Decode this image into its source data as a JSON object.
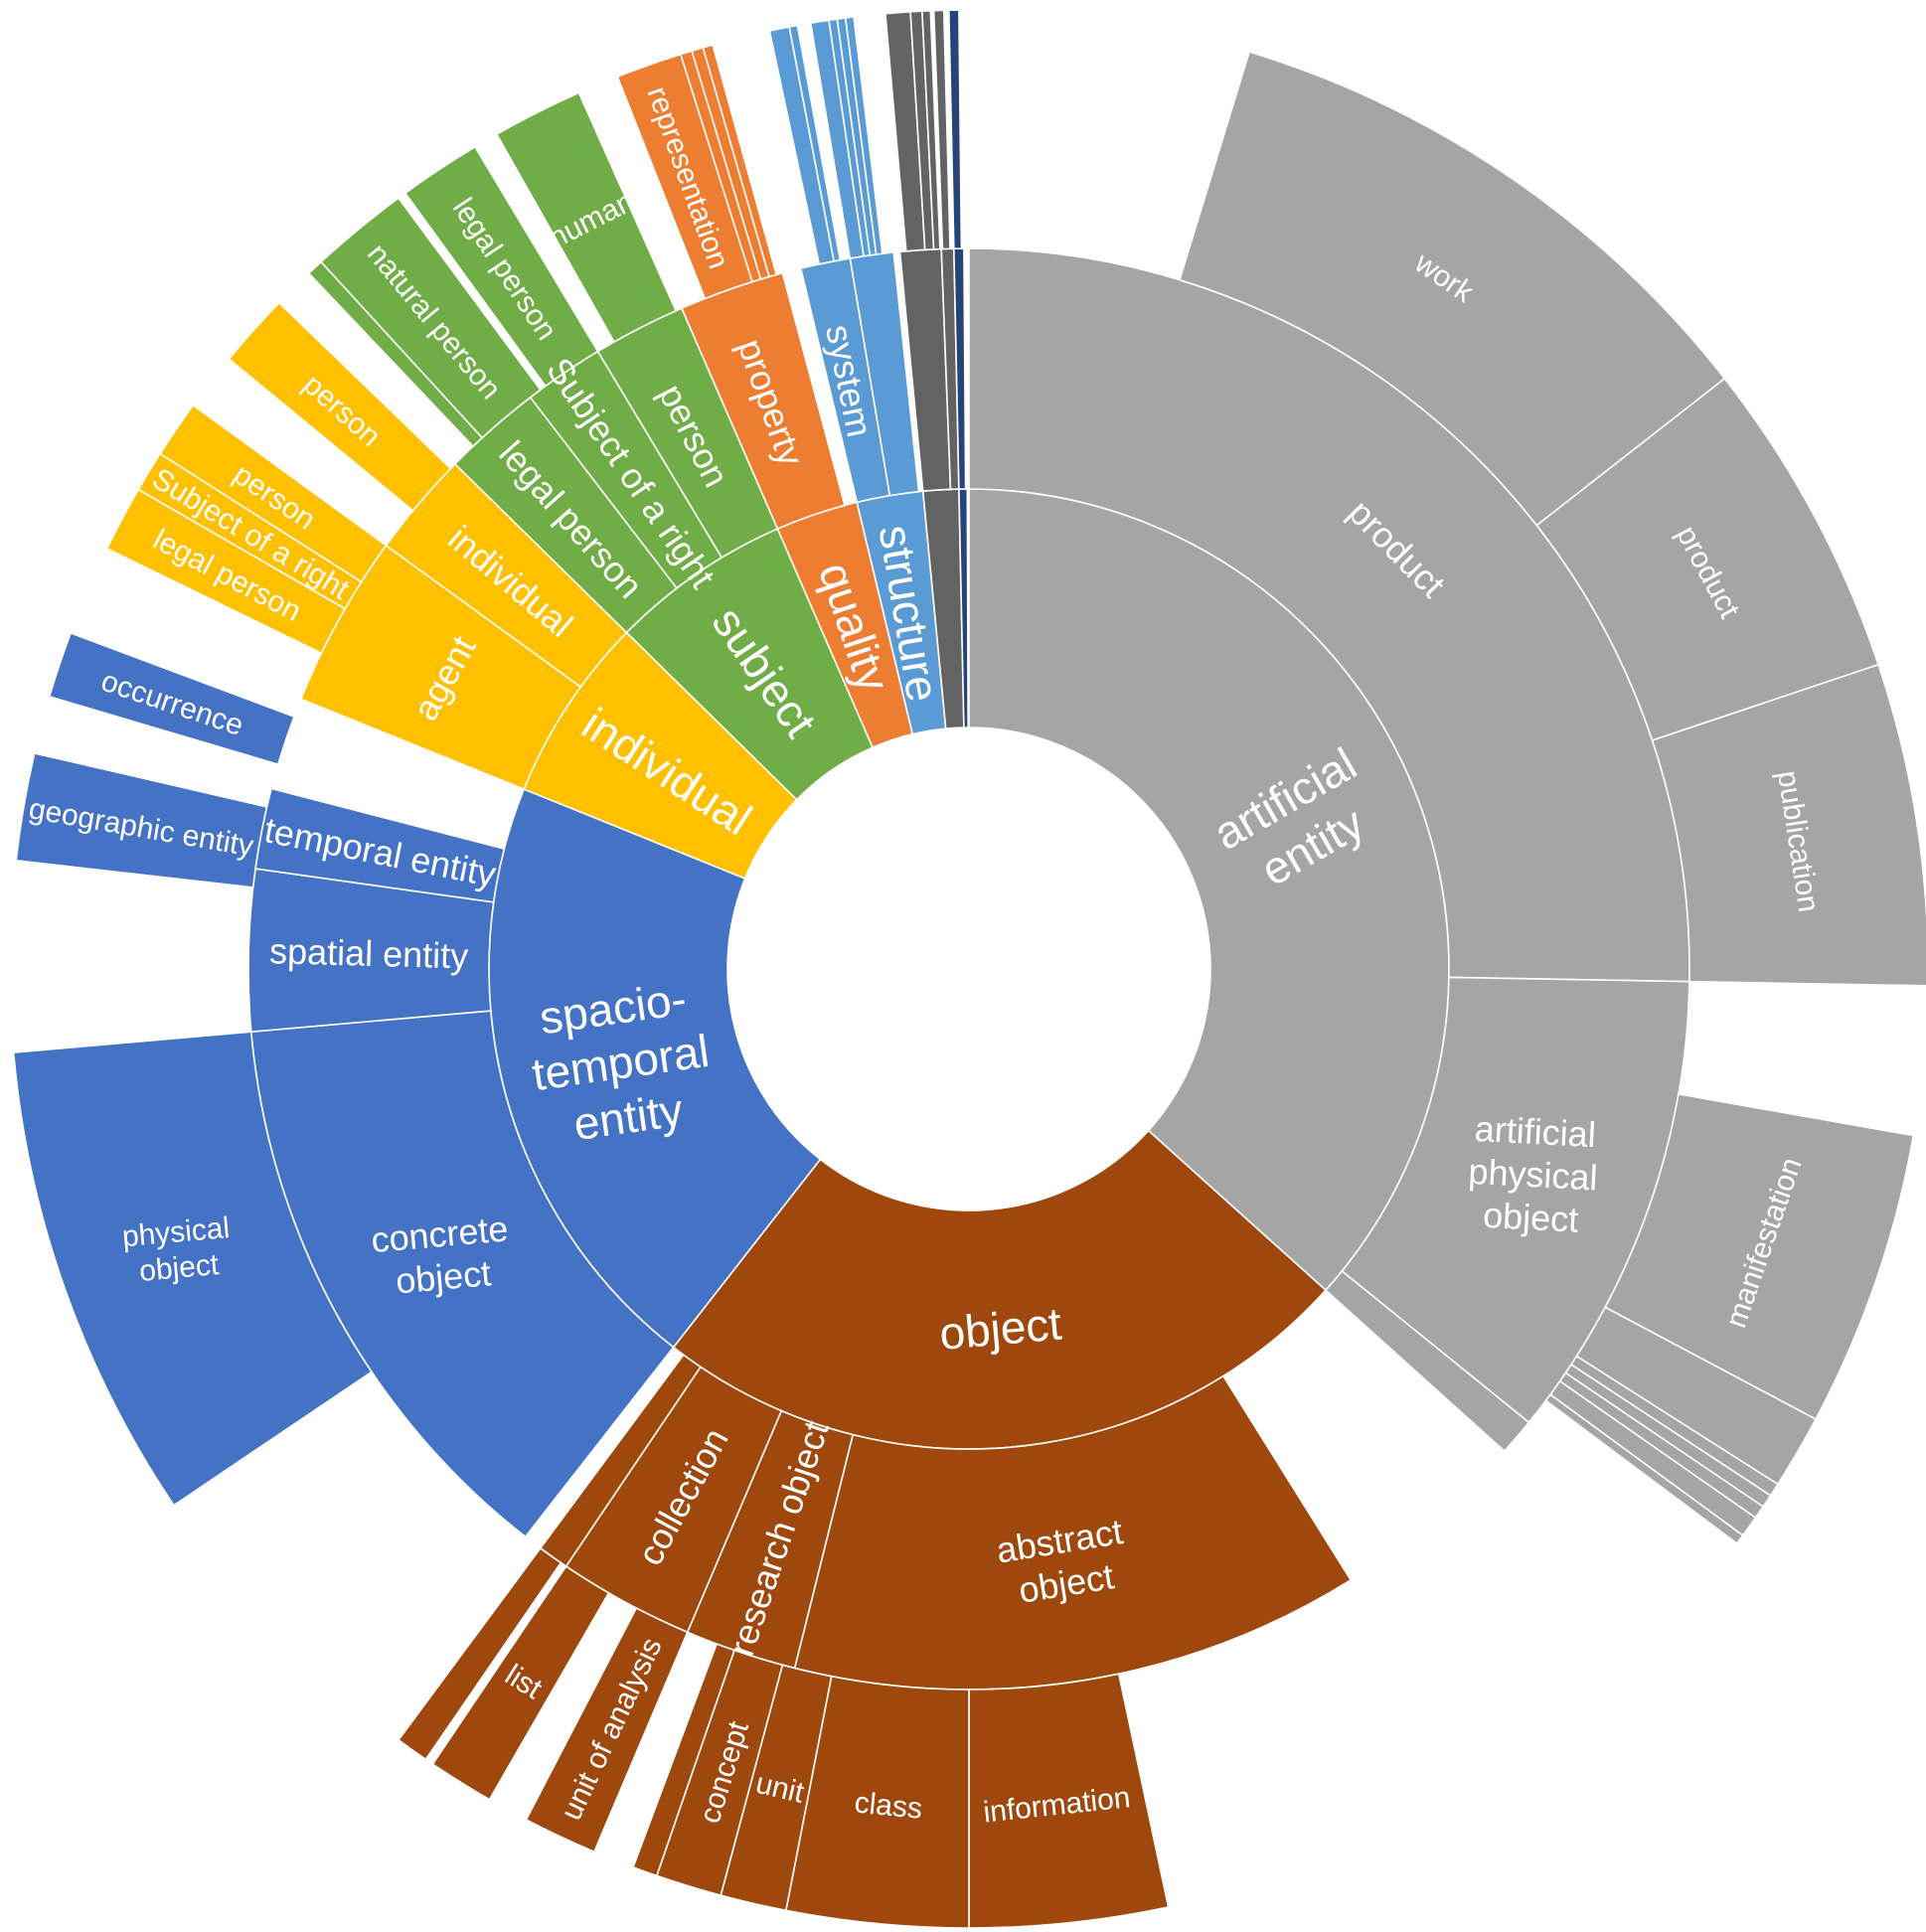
{
  "chart_data": {
    "type": "sunburst",
    "title": "",
    "colors": {
      "artificial": "#A5A5A5",
      "object": "#9E480E",
      "spatio": "#4472C4",
      "individual": "#FFC000",
      "subject": "#70AD47",
      "quality": "#ED7D31",
      "structure": "#5B9BD5",
      "minorDark": "#636363",
      "minorBlue": "#264478"
    },
    "segments": [
      {
        "name": "artificial entity",
        "level": 1,
        "start": 0.0,
        "end": 132.0,
        "color": "artificial"
      },
      {
        "name": "product",
        "level": 2,
        "start": 0.0,
        "end": 91.0,
        "color": "artificial"
      },
      {
        "name": "work",
        "level": 3,
        "start": 17.0,
        "end": 52.0,
        "color": "artificial"
      },
      {
        "name": "product",
        "level": 3,
        "start": 52.0,
        "end": 71.5,
        "color": "artificial"
      },
      {
        "name": "publication",
        "level": 3,
        "start": 71.5,
        "end": 91.0,
        "color": "artificial"
      },
      {
        "name": "artificial physical object",
        "level": 2,
        "start": 91.0,
        "end": 129.0,
        "color": "artificial"
      },
      {
        "name": "",
        "level": 2,
        "start": 129.0,
        "end": 132.0,
        "color": "artificial"
      },
      {
        "name": "manifestation",
        "level": 3,
        "start": 100.0,
        "end": 118.0,
        "color": "artificial"
      },
      {
        "name": "",
        "level": 3,
        "start": 118.0,
        "end": 122.5,
        "color": "artificial"
      },
      {
        "name": "",
        "level": 3,
        "start": 122.5,
        "end": 123.3,
        "color": "artificial"
      },
      {
        "name": "",
        "level": 3,
        "start": 123.3,
        "end": 124.1,
        "color": "artificial"
      },
      {
        "name": "",
        "level": 3,
        "start": 124.1,
        "end": 124.9,
        "color": "artificial"
      },
      {
        "name": "",
        "level": 3,
        "start": 124.9,
        "end": 126.2,
        "color": "artificial"
      },
      {
        "name": "",
        "level": 3,
        "start": 126.2,
        "end": 126.8,
        "color": "artificial"
      },
      {
        "name": "object",
        "level": 1,
        "start": 132.0,
        "end": 218.0,
        "color": "object"
      },
      {
        "name": "abstract object",
        "level": 2,
        "start": 148.0,
        "end": 194.0,
        "color": "object"
      },
      {
        "name": "research object",
        "level": 2,
        "start": 194.0,
        "end": 203.0,
        "color": "object"
      },
      {
        "name": "collection",
        "level": 2,
        "start": 203.0,
        "end": 214.0,
        "color": "object"
      },
      {
        "name": "",
        "level": 2,
        "start": 214.0,
        "end": 216.5,
        "color": "object"
      },
      {
        "name": "information",
        "level": 3,
        "start": 168.0,
        "end": 180.0,
        "color": "object"
      },
      {
        "name": "class",
        "level": 3,
        "start": 180.0,
        "end": 191.0,
        "color": "object"
      },
      {
        "name": "unit",
        "level": 3,
        "start": 191.0,
        "end": 195.0,
        "color": "object"
      },
      {
        "name": "concept",
        "level": 3,
        "start": 195.0,
        "end": 199.0,
        "color": "object"
      },
      {
        "name": "",
        "level": 3,
        "start": 199.0,
        "end": 200.5,
        "color": "object"
      },
      {
        "name": "unit of analysis",
        "level": 3,
        "start": 203.0,
        "end": 207.5,
        "color": "object"
      },
      {
        "name": "list",
        "level": 3,
        "start": 210.0,
        "end": 214.0,
        "color": "object"
      },
      {
        "name": "",
        "level": 3,
        "start": 214.5,
        "end": 216.5,
        "color": "object"
      },
      {
        "name": "spacio-temporal entity",
        "level": 1,
        "start": 218.0,
        "end": 292.0,
        "color": "spatio"
      },
      {
        "name": "concrete object",
        "level": 2,
        "start": 218.0,
        "end": 265.0,
        "color": "spatio"
      },
      {
        "name": "physical object",
        "level": 3,
        "start": 236.0,
        "end": 265.0,
        "color": "spatio"
      },
      {
        "name": "spatial entity",
        "level": 2,
        "start": 265.0,
        "end": 278.0,
        "color": "spatio"
      },
      {
        "name": "geographic entity",
        "level": 3,
        "start": 276.5,
        "end": 283.0,
        "color": "spatio"
      },
      {
        "name": "temporal entity",
        "level": 2,
        "start": 278.0,
        "end": 284.5,
        "color": "spatio"
      },
      {
        "name": "occurrence",
        "level": 3,
        "start": 286.5,
        "end": 290.5,
        "color": "spatio"
      },
      {
        "name": "individual",
        "level": 1,
        "start": 292.0,
        "end": 314.5,
        "color": "individual"
      },
      {
        "name": "agent",
        "level": 2,
        "start": 292.0,
        "end": 306.0,
        "color": "individual"
      },
      {
        "name": "individual",
        "level": 2,
        "start": 306.0,
        "end": 314.5,
        "color": "individual"
      },
      {
        "name": "legal person",
        "level": 3,
        "start": 296.0,
        "end": 300.0,
        "color": "individual"
      },
      {
        "name": "Subject of a right",
        "level": 3,
        "start": 300.0,
        "end": 302.5,
        "color": "individual"
      },
      {
        "name": "person",
        "level": 3,
        "start": 302.5,
        "end": 306.0,
        "color": "individual"
      },
      {
        "name": "person",
        "level": 3,
        "start": 309.5,
        "end": 314.0,
        "color": "individual"
      },
      {
        "name": "subject",
        "level": 1,
        "start": 314.5,
        "end": 336.5,
        "color": "subject"
      },
      {
        "name": "legal person",
        "level": 2,
        "start": 314.5,
        "end": 322.5,
        "color": "subject"
      },
      {
        "name": "Subject of a right",
        "level": 2,
        "start": 322.5,
        "end": 329.0,
        "color": "subject"
      },
      {
        "name": "person",
        "level": 2,
        "start": 329.0,
        "end": 336.5,
        "color": "subject"
      },
      {
        "name": "",
        "level": 3,
        "start": 316.5,
        "end": 317.5,
        "color": "subject"
      },
      {
        "name": "natural person",
        "level": 3,
        "start": 317.5,
        "end": 323.5,
        "color": "subject"
      },
      {
        "name": "legal person",
        "level": 3,
        "start": 324.0,
        "end": 329.0,
        "color": "subject"
      },
      {
        "name": "human",
        "level": 3,
        "start": 330.5,
        "end": 336.0,
        "color": "subject"
      },
      {
        "name": "quality",
        "level": 1,
        "start": 336.5,
        "end": 346.5,
        "color": "quality"
      },
      {
        "name": "property",
        "level": 2,
        "start": 336.5,
        "end": 345.0,
        "color": "quality"
      },
      {
        "name": "representation",
        "level": 3,
        "start": 338.5,
        "end": 342.5,
        "color": "quality"
      },
      {
        "name": "",
        "level": 3,
        "start": 342.5,
        "end": 343.2,
        "color": "quality"
      },
      {
        "name": "",
        "level": 3,
        "start": 343.2,
        "end": 343.9,
        "color": "quality"
      },
      {
        "name": "",
        "level": 3,
        "start": 343.9,
        "end": 344.5,
        "color": "quality"
      },
      {
        "name": "structure",
        "level": 1,
        "start": 346.5,
        "end": 354.5,
        "color": "structure"
      },
      {
        "name": "system",
        "level": 2,
        "start": 346.5,
        "end": 350.5,
        "color": "structure"
      },
      {
        "name": "",
        "level": 2,
        "start": 350.5,
        "end": 354.0,
        "color": "structure"
      },
      {
        "name": "",
        "level": 3,
        "start": 348.0,
        "end": 349.2,
        "color": "structure"
      },
      {
        "name": "",
        "level": 3,
        "start": 349.2,
        "end": 349.7,
        "color": "structure"
      },
      {
        "name": "",
        "level": 3,
        "start": 350.5,
        "end": 351.6,
        "color": "structure"
      },
      {
        "name": "",
        "level": 3,
        "start": 351.6,
        "end": 352.1,
        "color": "structure"
      },
      {
        "name": "",
        "level": 3,
        "start": 352.1,
        "end": 352.6,
        "color": "structure"
      },
      {
        "name": "",
        "level": 3,
        "start": 352.6,
        "end": 353.1,
        "color": "structure"
      },
      {
        "name": "",
        "level": 1,
        "start": 354.5,
        "end": 358.8,
        "color": "minorDark"
      },
      {
        "name": "",
        "level": 2,
        "start": 354.5,
        "end": 357.8,
        "color": "minorDark"
      },
      {
        "name": "",
        "level": 2,
        "start": 357.8,
        "end": 358.8,
        "color": "minorDark"
      },
      {
        "name": "",
        "level": 3,
        "start": 355.0,
        "end": 356.5,
        "color": "minorDark"
      },
      {
        "name": "",
        "level": 3,
        "start": 356.5,
        "end": 357.2,
        "color": "minorDark"
      },
      {
        "name": "",
        "level": 3,
        "start": 357.2,
        "end": 357.7,
        "color": "minorDark"
      },
      {
        "name": "",
        "level": 3,
        "start": 357.9,
        "end": 358.5,
        "color": "minorDark"
      },
      {
        "name": "",
        "level": 1,
        "start": 358.8,
        "end": 359.8,
        "color": "minorBlue"
      },
      {
        "name": "",
        "level": 2,
        "start": 358.8,
        "end": 359.6,
        "color": "minorBlue"
      },
      {
        "name": "",
        "level": 3,
        "start": 358.8,
        "end": 359.4,
        "color": "minorBlue"
      }
    ]
  }
}
